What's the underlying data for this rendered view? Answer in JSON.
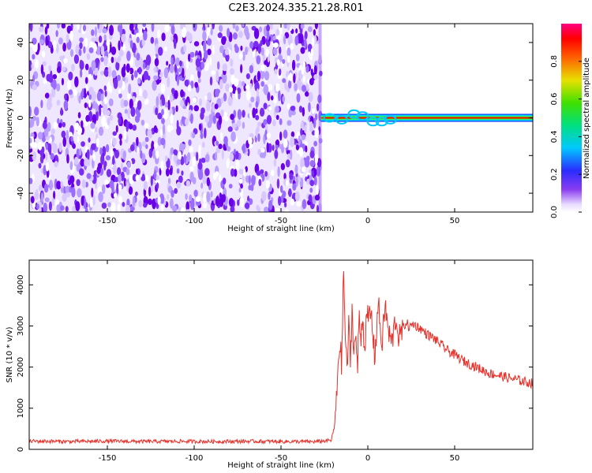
{
  "title": "C2E3.2024.335.21.28.R01",
  "colors": {
    "snr_line": "#e8302a",
    "panel_border": "#000000",
    "spectral_line_core": "#ff0000",
    "speckle_dark": "#6a00e8",
    "speckle_light": "#d9c8ff"
  },
  "chart_data": [
    {
      "type": "heatmap",
      "xlabel": "Height of straight line (km)",
      "ylabel": "Frequency (Hz)",
      "xlim": [
        -195,
        95
      ],
      "ylim": [
        -50,
        50
      ],
      "x_ticks": [
        -150,
        -100,
        -50,
        0,
        50
      ],
      "x_tick_labels": [
        "-150",
        "-100",
        "-50",
        "0",
        "50"
      ],
      "y_ticks": [
        -40,
        -20,
        0,
        20,
        40
      ],
      "y_tick_labels": [
        "-40",
        "-20",
        "0",
        "20",
        "40"
      ],
      "colorbar": {
        "label": "Normalized spectral amplitude",
        "range": [
          0.0,
          1.0
        ],
        "ticks": [
          0.0,
          0.2,
          0.4,
          0.6,
          0.8
        ],
        "tick_labels": [
          "0.0",
          "0.2",
          "0.4",
          "0.6",
          "0.8"
        ],
        "colormap": "purple-blue-cyan-green-yellow-red-magenta"
      },
      "regions": [
        {
          "x_range": [
            -195,
            -27
          ],
          "description": "broadband noise, amplitude 0.0-0.2"
        },
        {
          "x_range": [
            -27,
            95
          ],
          "frequency_hz": 0,
          "description": "narrow signal line at 0 Hz, peak amplitude ~1.0"
        }
      ]
    },
    {
      "type": "line",
      "xlabel": "Height of straight line (km)",
      "ylabel": "SNR (10 * v/v)",
      "xlim": [
        -195,
        95
      ],
      "ylim": [
        0,
        4600
      ],
      "x_ticks": [
        -150,
        -100,
        -50,
        0,
        50
      ],
      "x_tick_labels": [
        "-150",
        "-100",
        "-50",
        "0",
        "50"
      ],
      "y_ticks": [
        0,
        1000,
        2000,
        3000,
        4000
      ],
      "y_tick_labels": [
        "0",
        "1000",
        "2000",
        "3000",
        "4000"
      ],
      "series": [
        {
          "x": [
            -195,
            -170,
            -150,
            -130,
            -110,
            -90,
            -70,
            -50,
            -30,
            -21,
            -19,
            -18,
            -17,
            -16,
            -15,
            -14,
            -13,
            -12,
            -11,
            -10,
            -9,
            -8,
            -7,
            -6,
            -5,
            -4,
            -3,
            -2,
            -1,
            0,
            2,
            4,
            6,
            8,
            10,
            12,
            14,
            16,
            18,
            20,
            22,
            24,
            26,
            28,
            30,
            34,
            38,
            42,
            46,
            50,
            55,
            60,
            65,
            70,
            75,
            80,
            85,
            90,
            95
          ],
          "y": [
            200,
            190,
            200,
            190,
            195,
            190,
            195,
            190,
            185,
            220,
            600,
            1200,
            2200,
            2600,
            2000,
            4500,
            2800,
            1900,
            3000,
            2100,
            3500,
            2300,
            2900,
            1800,
            3300,
            2600,
            3400,
            2400,
            3000,
            3200,
            3300,
            2200,
            3600,
            2500,
            3500,
            2800,
            2600,
            3200,
            2700,
            2900,
            3100,
            2950,
            3050,
            3000,
            2950,
            2800,
            2700,
            2550,
            2400,
            2300,
            2150,
            2050,
            1950,
            1850,
            1800,
            1750,
            1700,
            1650,
            1600
          ]
        }
      ]
    }
  ]
}
